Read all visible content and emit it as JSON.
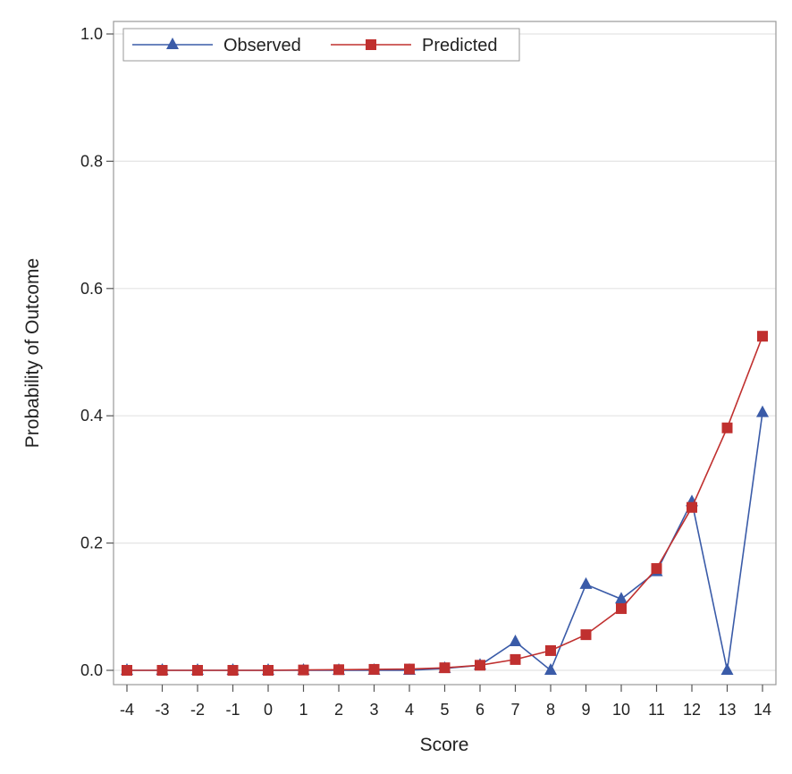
{
  "chart_data": {
    "type": "line",
    "title": "",
    "xlabel": "Score",
    "ylabel": "Probability of Outcome",
    "x": [
      -4,
      -3,
      -2,
      -1,
      0,
      1,
      2,
      3,
      4,
      5,
      6,
      7,
      8,
      9,
      10,
      11,
      12,
      13,
      14
    ],
    "x_tick_labels": [
      "-4",
      "-3",
      "-2",
      "-1",
      "0",
      "1",
      "2",
      "3",
      "4",
      "5",
      "6",
      "7",
      "8",
      "9",
      "10",
      "11",
      "12",
      "13",
      "14"
    ],
    "ylim": [
      0,
      1.0
    ],
    "y_ticks": [
      0.0,
      0.2,
      0.4,
      0.6,
      0.8,
      1.0
    ],
    "y_tick_labels": [
      "0.0",
      "0.2",
      "0.4",
      "0.6",
      "0.8",
      "1.0"
    ],
    "grid": "horizontal",
    "legend_position": "top-left",
    "series": [
      {
        "name": "Observed",
        "marker": "triangle",
        "color": "#3a5ba8",
        "values": [
          0,
          0,
          0,
          0,
          0,
          0,
          0,
          0,
          0,
          0.003,
          0.008,
          0.045,
          0,
          0.135,
          0.112,
          0.155,
          0.265,
          0,
          0.405
        ]
      },
      {
        "name": "Predicted",
        "marker": "square",
        "color": "#c0302f",
        "values": [
          0,
          0,
          0,
          0,
          0,
          0.0005,
          0.001,
          0.0015,
          0.002,
          0.004,
          0.008,
          0.017,
          0.031,
          0.056,
          0.097,
          0.16,
          0.256,
          0.381,
          0.525
        ]
      }
    ]
  }
}
